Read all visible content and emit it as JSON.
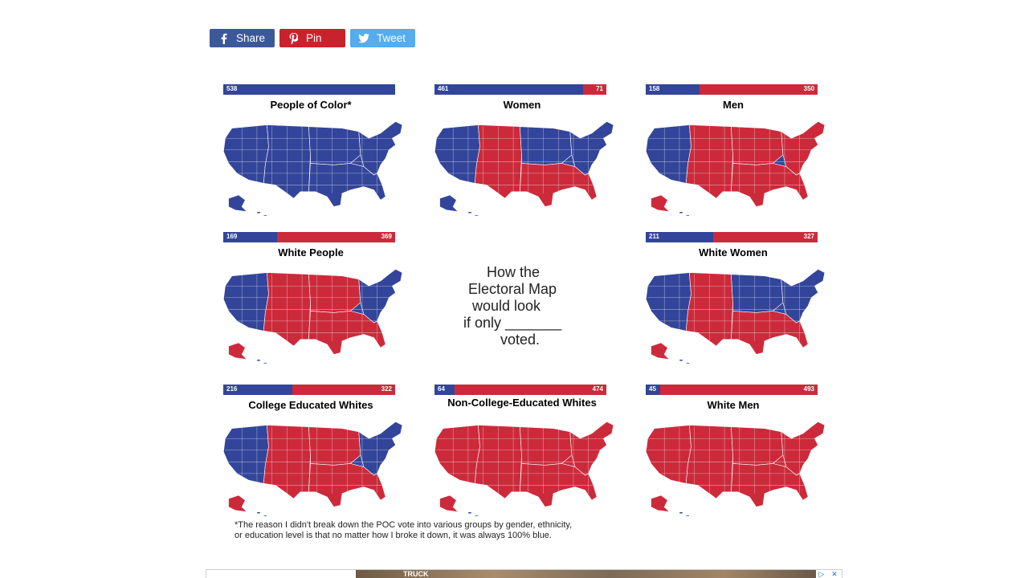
{
  "share": {
    "facebook_label": "Share",
    "pinterest_label": "Pin",
    "twitter_label": "Tweet",
    "colors": {
      "facebook": "#3b5998",
      "pinterest": "#c8232c",
      "twitter": "#55acee"
    }
  },
  "colors": {
    "blue": "#33459a",
    "red": "#cc2a3b"
  },
  "panels": [
    {
      "title": "People of Color*",
      "blue": 538,
      "red": null,
      "icon": "us-map-icon"
    },
    {
      "title": "Women",
      "blue": 461,
      "red": 71,
      "icon": "us-map-icon"
    },
    {
      "title": "Men",
      "blue": 158,
      "red": 350,
      "icon": "us-map-icon"
    },
    {
      "title": "White People",
      "blue": 169,
      "red": 369,
      "icon": "us-map-icon"
    },
    {
      "title": "White Women",
      "blue": 211,
      "red": 327,
      "icon": "us-map-icon"
    },
    {
      "title": "College Educated Whites",
      "blue": 216,
      "red": 322,
      "icon": "us-map-icon"
    },
    {
      "title": "Non-College-Educated Whites",
      "blue": 64,
      "red": 474,
      "icon": "us-map-icon"
    },
    {
      "title": "White Men",
      "blue": 45,
      "red": 493,
      "icon": "us-map-icon"
    }
  ],
  "center": {
    "line1": "How the",
    "line2": "Electoral Map",
    "line3": "would look",
    "line4": "if only _______",
    "line5": "voted."
  },
  "footnote": {
    "line1": "*The reason I didn't break down the POC vote into various groups by gender, ethnicity,",
    "line2": "or education level is that no matter how I broke it down, it was always 100% blue."
  },
  "ad": {
    "text": "TRUCK",
    "adchoices_icon": "adchoices-icon",
    "close_icon": "close-icon"
  }
}
